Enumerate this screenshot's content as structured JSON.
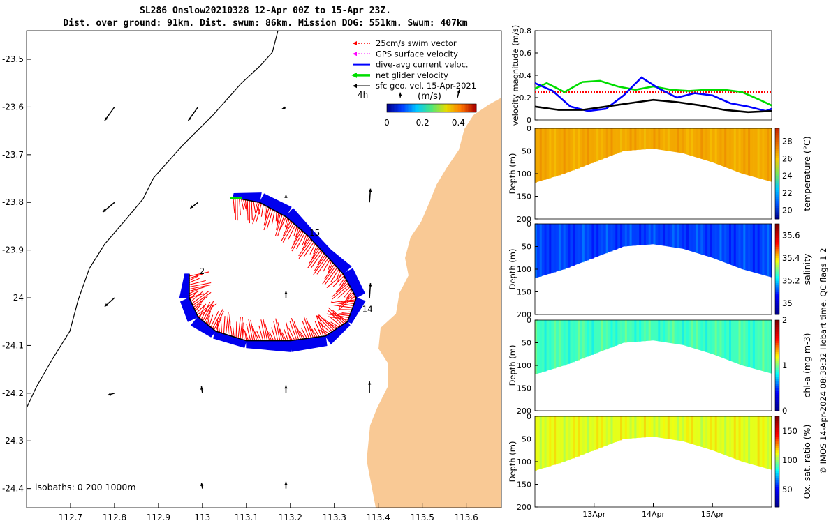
{
  "title": {
    "line1": "SL286 Onslow20210328 12-Apr 00Z to 15-Apr 23Z.",
    "line2": "Dist. over ground: 91km. Dist. swum: 86km. Mission DOG: 551km. Swum: 407km"
  },
  "colors": {
    "land": "#f9c995",
    "track_band": "#0000ee",
    "swim_vector": "#ff0000",
    "gps_velocity": "#ff00ff",
    "current": "#0000ff",
    "net_velocity": "#00dd00",
    "geostrophic": "#000000"
  },
  "chart_data": [
    {
      "type": "map",
      "name": "track-map",
      "xlim": [
        112.6,
        113.68
      ],
      "ylim": [
        -24.44,
        -23.44
      ],
      "xticks": [
        112.7,
        112.8,
        112.9,
        113,
        113.1,
        113.2,
        113.3,
        113.4,
        113.5,
        113.6
      ],
      "yticks": [
        -23.5,
        -23.6,
        -23.7,
        -23.8,
        -23.9,
        -24,
        -24.1,
        -24.2,
        -24.3,
        -24.4
      ],
      "xtick_labels": [
        "112.7",
        "112.8",
        "112.9",
        "113",
        "113.1",
        "113.2",
        "113.3",
        "113.4",
        "113.5",
        "113.6"
      ],
      "ytick_labels": [
        "-23.5",
        "-23.6",
        "-23.7",
        "-23.8",
        "-23.9",
        "-24",
        "-24.1",
        "-24.2",
        "-24.3",
        "-24.4"
      ],
      "legend": [
        {
          "label": "25cm/s swim vector",
          "color": "#ff0000",
          "style": "dotted-arrow"
        },
        {
          "label": "GPS surface velocity",
          "color": "#ff00ff",
          "style": "dotted-arrow"
        },
        {
          "label": "dive-avg current veloc.",
          "color": "#0000ff",
          "style": "line"
        },
        {
          "label": "net glider velocity",
          "color": "#00dd00",
          "style": "thick-arrow"
        },
        {
          "label": "sfc geo. vel. 15-Apr-2021",
          "color": "#000000",
          "style": "arrow"
        }
      ],
      "colorbar": {
        "label": "(m/s)",
        "ticks": [
          "0",
          "0.2",
          "0.4"
        ],
        "range": [
          0,
          0.5
        ],
        "tag": "4h"
      },
      "isobaths_label": "isobaths: 0   200  1000m",
      "track": [
        [
          113.07,
          -23.79
        ],
        [
          113.13,
          -23.8
        ],
        [
          113.19,
          -23.83
        ],
        [
          113.24,
          -23.87
        ],
        [
          113.28,
          -23.91
        ],
        [
          113.32,
          -23.95
        ],
        [
          113.35,
          -24.0
        ],
        [
          113.33,
          -24.05
        ],
        [
          113.28,
          -24.08
        ],
        [
          113.2,
          -24.09
        ],
        [
          113.1,
          -24.09
        ],
        [
          113.03,
          -24.07
        ],
        [
          112.99,
          -24.04
        ],
        [
          112.97,
          -24.0
        ],
        [
          112.97,
          -23.95
        ]
      ],
      "day_labels": [
        {
          "text": "15",
          "lon": 113.24,
          "lat": -23.87
        },
        {
          "text": "14",
          "lon": 113.36,
          "lat": -24.03
        },
        {
          "text": "2",
          "lon": 112.99,
          "lat": -23.95
        }
      ],
      "geostrophic_vectors": [
        {
          "lon": 112.8,
          "lat": -23.6,
          "u": -0.1,
          "v": -0.14
        },
        {
          "lon": 112.99,
          "lat": -23.6,
          "u": -0.1,
          "v": -0.14
        },
        {
          "lon": 113.19,
          "lat": -23.6,
          "u": -0.04,
          "v": -0.02
        },
        {
          "lon": 113.45,
          "lat": -23.58,
          "u": 0.0,
          "v": 0.05
        },
        {
          "lon": 113.58,
          "lat": -23.58,
          "u": 0.02,
          "v": 0.08
        },
        {
          "lon": 112.8,
          "lat": -23.8,
          "u": -0.12,
          "v": -0.1
        },
        {
          "lon": 112.99,
          "lat": -23.8,
          "u": -0.08,
          "v": -0.06
        },
        {
          "lon": 113.19,
          "lat": -23.79,
          "u": 0.0,
          "v": 0.03
        },
        {
          "lon": 113.38,
          "lat": -23.8,
          "u": 0.01,
          "v": 0.14
        },
        {
          "lon": 112.8,
          "lat": -24.0,
          "u": -0.1,
          "v": -0.09
        },
        {
          "lon": 113.19,
          "lat": -24.0,
          "u": 0.0,
          "v": 0.07
        },
        {
          "lon": 113.38,
          "lat": -24.0,
          "u": 0.01,
          "v": 0.15
        },
        {
          "lon": 112.8,
          "lat": -24.2,
          "u": -0.07,
          "v": -0.02
        },
        {
          "lon": 113.0,
          "lat": -24.2,
          "u": -0.01,
          "v": 0.07
        },
        {
          "lon": 113.19,
          "lat": -24.2,
          "u": 0.0,
          "v": 0.08
        },
        {
          "lon": 113.38,
          "lat": -24.2,
          "u": 0.0,
          "v": 0.12
        },
        {
          "lon": 113.0,
          "lat": -24.4,
          "u": -0.01,
          "v": 0.06
        },
        {
          "lon": 113.19,
          "lat": -24.4,
          "u": 0.0,
          "v": 0.07
        }
      ]
    },
    {
      "type": "line",
      "name": "velocity-magnitude",
      "ylabel": "velocity magnitude (m/s)",
      "ylim": [
        0,
        0.8
      ],
      "yticks": [
        "0",
        "0.2",
        "0.4",
        "0.6",
        "0.8"
      ],
      "xlim_days": [
        0,
        4
      ],
      "series": [
        {
          "name": "swim vector",
          "color": "#ff0000",
          "style": "dotted",
          "x": [
            0,
            4
          ],
          "y": [
            0.25,
            0.25
          ]
        },
        {
          "name": "net glider velocity",
          "color": "#00dd00",
          "x": [
            0,
            0.2,
            0.5,
            0.8,
            1.1,
            1.4,
            1.7,
            2.0,
            2.3,
            2.6,
            2.9,
            3.2,
            3.5,
            3.8,
            4.0
          ],
          "y": [
            0.28,
            0.33,
            0.25,
            0.34,
            0.35,
            0.3,
            0.27,
            0.3,
            0.27,
            0.26,
            0.27,
            0.27,
            0.25,
            0.18,
            0.13
          ]
        },
        {
          "name": "dive-avg current",
          "color": "#0000ff",
          "x": [
            0,
            0.3,
            0.6,
            0.9,
            1.2,
            1.5,
            1.8,
            2.1,
            2.4,
            2.7,
            3.0,
            3.3,
            3.6,
            3.9,
            4.0
          ],
          "y": [
            0.33,
            0.26,
            0.12,
            0.08,
            0.1,
            0.22,
            0.38,
            0.28,
            0.2,
            0.24,
            0.22,
            0.15,
            0.12,
            0.08,
            0.1
          ]
        },
        {
          "name": "surface geostrophic",
          "color": "#000000",
          "x": [
            0,
            0.4,
            0.8,
            1.2,
            1.6,
            2.0,
            2.4,
            2.8,
            3.2,
            3.6,
            4.0
          ],
          "y": [
            0.12,
            0.09,
            0.09,
            0.12,
            0.15,
            0.18,
            0.16,
            0.13,
            0.09,
            0.07,
            0.08
          ]
        }
      ]
    },
    {
      "type": "heatmap",
      "name": "temperature-section",
      "ylabel": "Depth (m)",
      "ylim": [
        200,
        0
      ],
      "yticks": [
        "0",
        "50",
        "100",
        "150",
        "200"
      ],
      "colorbar_label": "temperature (°C)",
      "colorbar_ticks": [
        "20",
        "22",
        "24",
        "26",
        "28"
      ],
      "colorbar_range": [
        19,
        29.5
      ],
      "fill_value": 26.6
    },
    {
      "type": "heatmap",
      "name": "salinity-section",
      "ylabel": "Depth (m)",
      "ylim": [
        200,
        0
      ],
      "yticks": [
        "0",
        "50",
        "100",
        "150",
        "200"
      ],
      "colorbar_label": "salinity",
      "colorbar_ticks": [
        "35",
        "35.2",
        "35.4",
        "35.6"
      ],
      "colorbar_range": [
        34.9,
        35.7
      ],
      "fill_value": 35.1
    },
    {
      "type": "heatmap",
      "name": "chla-section",
      "ylabel": "Depth (m)",
      "ylim": [
        200,
        0
      ],
      "yticks": [
        "0",
        "50",
        "100",
        "150",
        "200"
      ],
      "colorbar_label": "chl-a (mg m-3)",
      "colorbar_ticks": [
        "0",
        "1",
        "2"
      ],
      "colorbar_range": [
        0,
        2
      ],
      "fill_value": 0.9
    },
    {
      "type": "heatmap",
      "name": "oxygen-section",
      "ylabel": "Depth (m)",
      "ylim": [
        200,
        0
      ],
      "yticks": [
        "0",
        "50",
        "100",
        "150",
        "200"
      ],
      "colorbar_label": "Ox. sat. ratio (%)",
      "colorbar_ticks": [
        "50",
        "100",
        "150"
      ],
      "colorbar_range": [
        20,
        175
      ],
      "fill_value": 110,
      "xtick_labels": [
        "13Apr",
        "14Apr",
        "15Apr"
      ],
      "xtick_days": [
        1,
        2,
        3
      ]
    }
  ],
  "right_note": "© IMOS 14-Apr-2024 08:39:32 Hobart time. QC flags 1  2"
}
